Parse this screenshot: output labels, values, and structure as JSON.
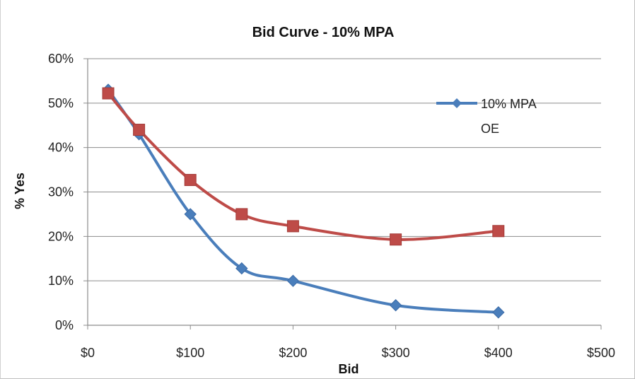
{
  "chart_data": {
    "type": "line",
    "title": "Bid Curve - 10% MPA",
    "xlabel": "Bid",
    "ylabel": "% Yes",
    "xlim": [
      0,
      500
    ],
    "ylim": [
      0,
      0.6
    ],
    "x_ticks": [
      "$0",
      "$100",
      "$200",
      "$300",
      "$400",
      "$500"
    ],
    "y_ticks": [
      "0%",
      "10%",
      "20%",
      "30%",
      "40%",
      "50%",
      "60%"
    ],
    "grid": true,
    "legend_position": "top-right",
    "series": [
      {
        "name": "10% MPA OE",
        "color": "#4a7ebb",
        "marker": "diamond",
        "points": [
          [
            20,
            0.53
          ],
          [
            50,
            0.43
          ],
          [
            100,
            0.25
          ],
          [
            150,
            0.128
          ],
          [
            200,
            0.1
          ],
          [
            300,
            0.045
          ],
          [
            400,
            0.029
          ]
        ]
      },
      {
        "color": "#be4b48",
        "marker": "square",
        "points": [
          [
            20,
            0.522
          ],
          [
            50,
            0.44
          ],
          [
            100,
            0.327
          ],
          [
            150,
            0.25
          ],
          [
            200,
            0.223
          ],
          [
            300,
            0.193
          ],
          [
            400,
            0.212
          ]
        ]
      }
    ]
  },
  "legend": {
    "line1": "10% MPA",
    "line2": "OE"
  }
}
